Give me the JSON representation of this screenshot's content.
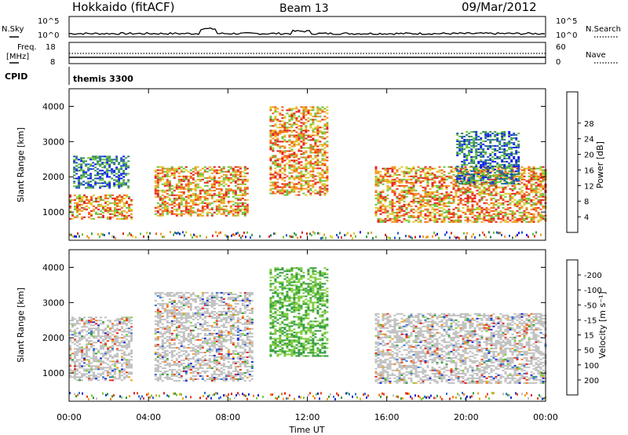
{
  "header": {
    "station": "Hokkaido (fitACF)",
    "beam": "Beam 13",
    "date": "09/Mar/2012"
  },
  "top_panels": {
    "nsky_label": "N.Sky",
    "nsearch_label": "N.Search",
    "noise_ticks": [
      "10^5",
      "10^0"
    ],
    "freq_label": "Freq.",
    "freq_unit": "[MHz]",
    "freq_ticks": [
      "18",
      "8"
    ],
    "nave_label": "Nave",
    "nave_ticks": [
      "60",
      "0"
    ],
    "cpid_label": "CPID",
    "cpid_value": "themis 3300"
  },
  "chart_data": [
    {
      "type": "heatmap",
      "name": "power-panel",
      "ylabel": "Slant Range [km]",
      "yticks": [
        1000,
        2000,
        3000,
        4000
      ],
      "ylim": [
        200,
        4500
      ],
      "xlim": [
        0,
        24
      ],
      "colorbar": {
        "label": "Power [dB]",
        "ticks": [
          4,
          8,
          12,
          16,
          20,
          24,
          28
        ],
        "colors": [
          "#0a1af0",
          "#1f55c8",
          "#2d7a6a",
          "#3a9a4a",
          "#66c33a",
          "#d9cc28",
          "#f29a1c",
          "#ee5a14",
          "#e31a1a"
        ]
      },
      "echo_regions": [
        {
          "t0": 0.0,
          "t1": 3.2,
          "r0": 800,
          "r1": 1500,
          "level": "high"
        },
        {
          "t0": 0.2,
          "t1": 3.0,
          "r0": 1700,
          "r1": 2600,
          "level": "medium"
        },
        {
          "t0": 4.3,
          "t1": 9.0,
          "r0": 900,
          "r1": 2300,
          "level": "high"
        },
        {
          "t0": 10.1,
          "t1": 13.0,
          "r0": 1500,
          "r1": 4000,
          "level": "high"
        },
        {
          "t0": 15.4,
          "t1": 24.0,
          "r0": 700,
          "r1": 2300,
          "level": "high"
        },
        {
          "t0": 19.5,
          "t1": 22.6,
          "r0": 1800,
          "r1": 3300,
          "level": "medium"
        }
      ]
    },
    {
      "type": "heatmap",
      "name": "velocity-panel",
      "ylabel": "Slant Range [km]",
      "yticks": [
        1000,
        2000,
        3000,
        4000
      ],
      "ylim": [
        200,
        4500
      ],
      "xlim": [
        0,
        24
      ],
      "colorbar": {
        "label": "Velocity [m s⁻¹]",
        "ticks": [
          200,
          100,
          50,
          15,
          -15,
          -50,
          -100,
          -200
        ],
        "colors": [
          "#1a2ad2",
          "#2f6fd6",
          "#2e9a3a",
          "#7acc3a",
          "#bfbfbf",
          "#f2a21e",
          "#f07818",
          "#ee3e14",
          "#e31a1a"
        ]
      },
      "echo_regions": [
        {
          "t0": 0.0,
          "t1": 3.2,
          "r0": 800,
          "r1": 2600,
          "level": "ground"
        },
        {
          "t0": 4.3,
          "t1": 9.2,
          "r0": 800,
          "r1": 3300,
          "level": "ground"
        },
        {
          "t0": 10.1,
          "t1": 13.0,
          "r0": 1500,
          "r1": 4000,
          "level": "positive"
        },
        {
          "t0": 15.4,
          "t1": 24.0,
          "r0": 700,
          "r1": 2700,
          "level": "ground"
        }
      ]
    }
  ],
  "x_axis": {
    "label": "Time UT",
    "ticks": [
      "00:00",
      "04:00",
      "08:00",
      "12:00",
      "16:00",
      "20:00",
      "00:00"
    ]
  }
}
